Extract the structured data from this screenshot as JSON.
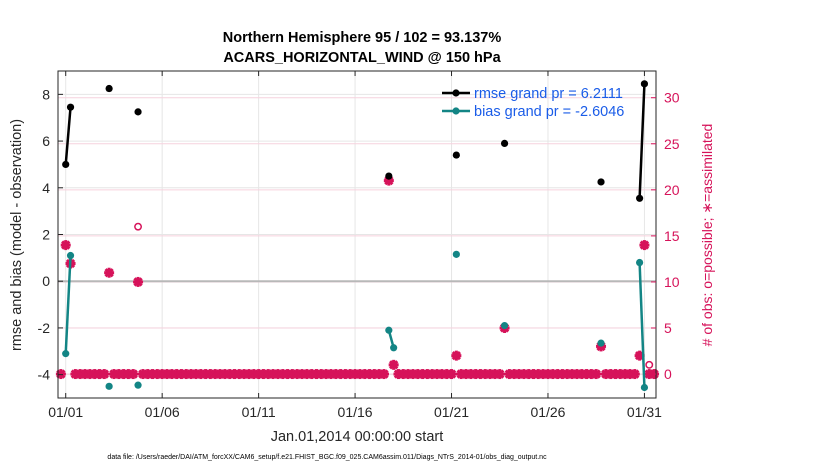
{
  "chart_data": {
    "type": "line",
    "title": [
      "Northern Hemisphere 95 / 102 = 93.137%",
      "ACARS_HORIZONTAL_WIND @ 150 hPa"
    ],
    "xlabel": "Jan.01,2014 00:00:00 start",
    "ylabel_left": "rmse and bias (model - observation)",
    "ylabel_right": "# of obs: o=possible; ∗=assimilated",
    "xlim": [
      0.6,
      31.6
    ],
    "ylim_left": [
      -5,
      9
    ],
    "ylim_right": [
      -2.6,
      32.9
    ],
    "x_ticks": [
      1,
      6,
      11,
      16,
      21,
      26,
      31
    ],
    "x_tick_labels": [
      "01/01",
      "01/06",
      "01/11",
      "01/16",
      "01/21",
      "01/26",
      "01/31"
    ],
    "y_ticks_left": [
      -4,
      -2,
      0,
      2,
      4,
      6,
      8
    ],
    "y_ticks_right": [
      0,
      5,
      10,
      15,
      20,
      25,
      30
    ],
    "grid": true,
    "legend_position": "top-right",
    "zero_line": 0,
    "series": [
      {
        "name": "rmse grand pr = 6.2111",
        "axis": "left",
        "color": "#000000",
        "segments": [
          [
            [
              1.0,
              5.0
            ],
            [
              1.25,
              7.45
            ]
          ],
          [
            [
              3.25,
              8.25
            ]
          ],
          [
            [
              4.75,
              7.25
            ]
          ],
          [
            [
              17.75,
              4.5
            ]
          ],
          [
            [
              21.25,
              5.4
            ]
          ],
          [
            [
              23.75,
              5.9
            ]
          ],
          [
            [
              28.75,
              4.25
            ]
          ],
          [
            [
              30.75,
              3.55
            ],
            [
              31.0,
              8.45
            ]
          ]
        ]
      },
      {
        "name": "bias grand pr = -2.6046",
        "axis": "left",
        "color": "#138585",
        "segments": [
          [
            [
              1.0,
              -3.1
            ],
            [
              1.25,
              1.1
            ]
          ],
          [
            [
              3.25,
              -4.5
            ]
          ],
          [
            [
              4.75,
              -4.45
            ]
          ],
          [
            [
              17.75,
              -2.1
            ],
            [
              18.0,
              -2.85
            ]
          ],
          [
            [
              21.25,
              1.15
            ]
          ],
          [
            [
              23.75,
              -1.9
            ]
          ],
          [
            [
              28.75,
              -2.65
            ]
          ],
          [
            [
              30.75,
              0.8
            ],
            [
              31.0,
              -4.55
            ]
          ]
        ]
      }
    ],
    "obs_possible": {
      "axis": "right",
      "color": "#d6135a",
      "points": [
        [
          1.0,
          14
        ],
        [
          1.25,
          12
        ],
        [
          3.25,
          11
        ],
        [
          4.75,
          16
        ],
        [
          17.75,
          21
        ],
        [
          18.0,
          1
        ],
        [
          21.25,
          2
        ],
        [
          23.75,
          5
        ],
        [
          28.75,
          3
        ],
        [
          30.75,
          2
        ],
        [
          31.0,
          14
        ],
        [
          31.25,
          1
        ]
      ]
    },
    "obs_assimilated": {
      "axis": "right",
      "color": "#d6135a",
      "nonzero_points": [
        [
          1.0,
          14
        ],
        [
          1.25,
          12
        ],
        [
          3.25,
          11
        ],
        [
          4.75,
          10
        ],
        [
          17.75,
          21
        ],
        [
          18.0,
          1
        ],
        [
          21.25,
          2
        ],
        [
          23.75,
          5
        ],
        [
          28.75,
          3
        ],
        [
          30.75,
          2
        ],
        [
          31.0,
          14
        ]
      ],
      "zero_baseline": {
        "x_start": 0.75,
        "x_end": 31.5,
        "step": 0.25,
        "value": 0
      }
    }
  },
  "footer": "data file: /Users/raeder/DAI/ATM_forcXX/CAM6_setup/f.e21.FHIST_BGC.f09_025.CAM6assim.011/Diags_NTrS_2014-01/obs_diag_output.nc"
}
